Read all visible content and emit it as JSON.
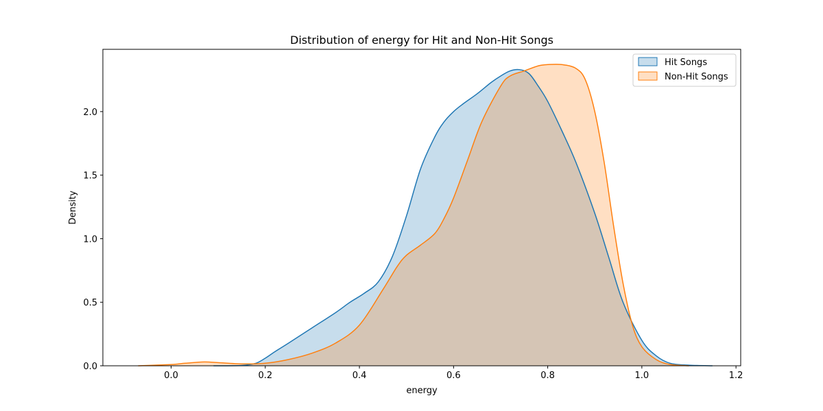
{
  "chart_data": {
    "type": "area",
    "title": "Distribution of energy for Hit and Non-Hit Songs",
    "xlabel": "energy",
    "ylabel": "Density",
    "xlim": [
      -0.145,
      1.21
    ],
    "ylim": [
      0,
      2.49
    ],
    "xticks": [
      0.0,
      0.2,
      0.4,
      0.6,
      0.8,
      1.0,
      1.2
    ],
    "xtick_labels": [
      "0.0",
      "0.2",
      "0.4",
      "0.6",
      "0.8",
      "1.0",
      "1.2"
    ],
    "yticks": [
      0.0,
      0.5,
      1.0,
      1.5,
      2.0
    ],
    "ytick_labels": [
      "0.0",
      "0.5",
      "1.0",
      "1.5",
      "2.0"
    ],
    "legend_position": "top-right",
    "series": [
      {
        "name": "Hit Songs",
        "line_color": "#1f77b4",
        "fill_color": "#1f77b4",
        "x": [
          0.09,
          0.15,
          0.18,
          0.2,
          0.22,
          0.25,
          0.3,
          0.35,
          0.38,
          0.41,
          0.44,
          0.47,
          0.5,
          0.53,
          0.56,
          0.58,
          0.6,
          0.62,
          0.65,
          0.68,
          0.7,
          0.72,
          0.74,
          0.76,
          0.78,
          0.8,
          0.83,
          0.86,
          0.9,
          0.93,
          0.96,
          1.0,
          1.03,
          1.06,
          1.1,
          1.15
        ],
        "y": [
          0.0,
          0.003,
          0.02,
          0.06,
          0.11,
          0.18,
          0.3,
          0.42,
          0.5,
          0.57,
          0.66,
          0.86,
          1.18,
          1.55,
          1.8,
          1.92,
          2.0,
          2.06,
          2.14,
          2.23,
          2.28,
          2.32,
          2.33,
          2.3,
          2.2,
          2.08,
          1.85,
          1.6,
          1.2,
          0.85,
          0.5,
          0.2,
          0.08,
          0.02,
          0.005,
          0.0
        ]
      },
      {
        "name": "Non-Hit Songs",
        "line_color": "#ff7f0e",
        "fill_color": "#ff7f0e",
        "x": [
          -0.07,
          0.0,
          0.03,
          0.07,
          0.1,
          0.15,
          0.2,
          0.25,
          0.3,
          0.35,
          0.4,
          0.45,
          0.48,
          0.5,
          0.53,
          0.56,
          0.58,
          0.6,
          0.63,
          0.66,
          0.7,
          0.72,
          0.75,
          0.78,
          0.8,
          0.83,
          0.86,
          0.88,
          0.9,
          0.92,
          0.94,
          0.96,
          0.98,
          1.0,
          1.03,
          1.06,
          1.1
        ],
        "y": [
          0.0,
          0.01,
          0.02,
          0.03,
          0.025,
          0.015,
          0.02,
          0.05,
          0.1,
          0.18,
          0.32,
          0.6,
          0.78,
          0.87,
          0.95,
          1.04,
          1.16,
          1.32,
          1.62,
          1.92,
          2.2,
          2.28,
          2.32,
          2.36,
          2.37,
          2.37,
          2.34,
          2.25,
          2.0,
          1.6,
          1.1,
          0.65,
          0.32,
          0.15,
          0.05,
          0.01,
          0.0
        ]
      }
    ]
  }
}
